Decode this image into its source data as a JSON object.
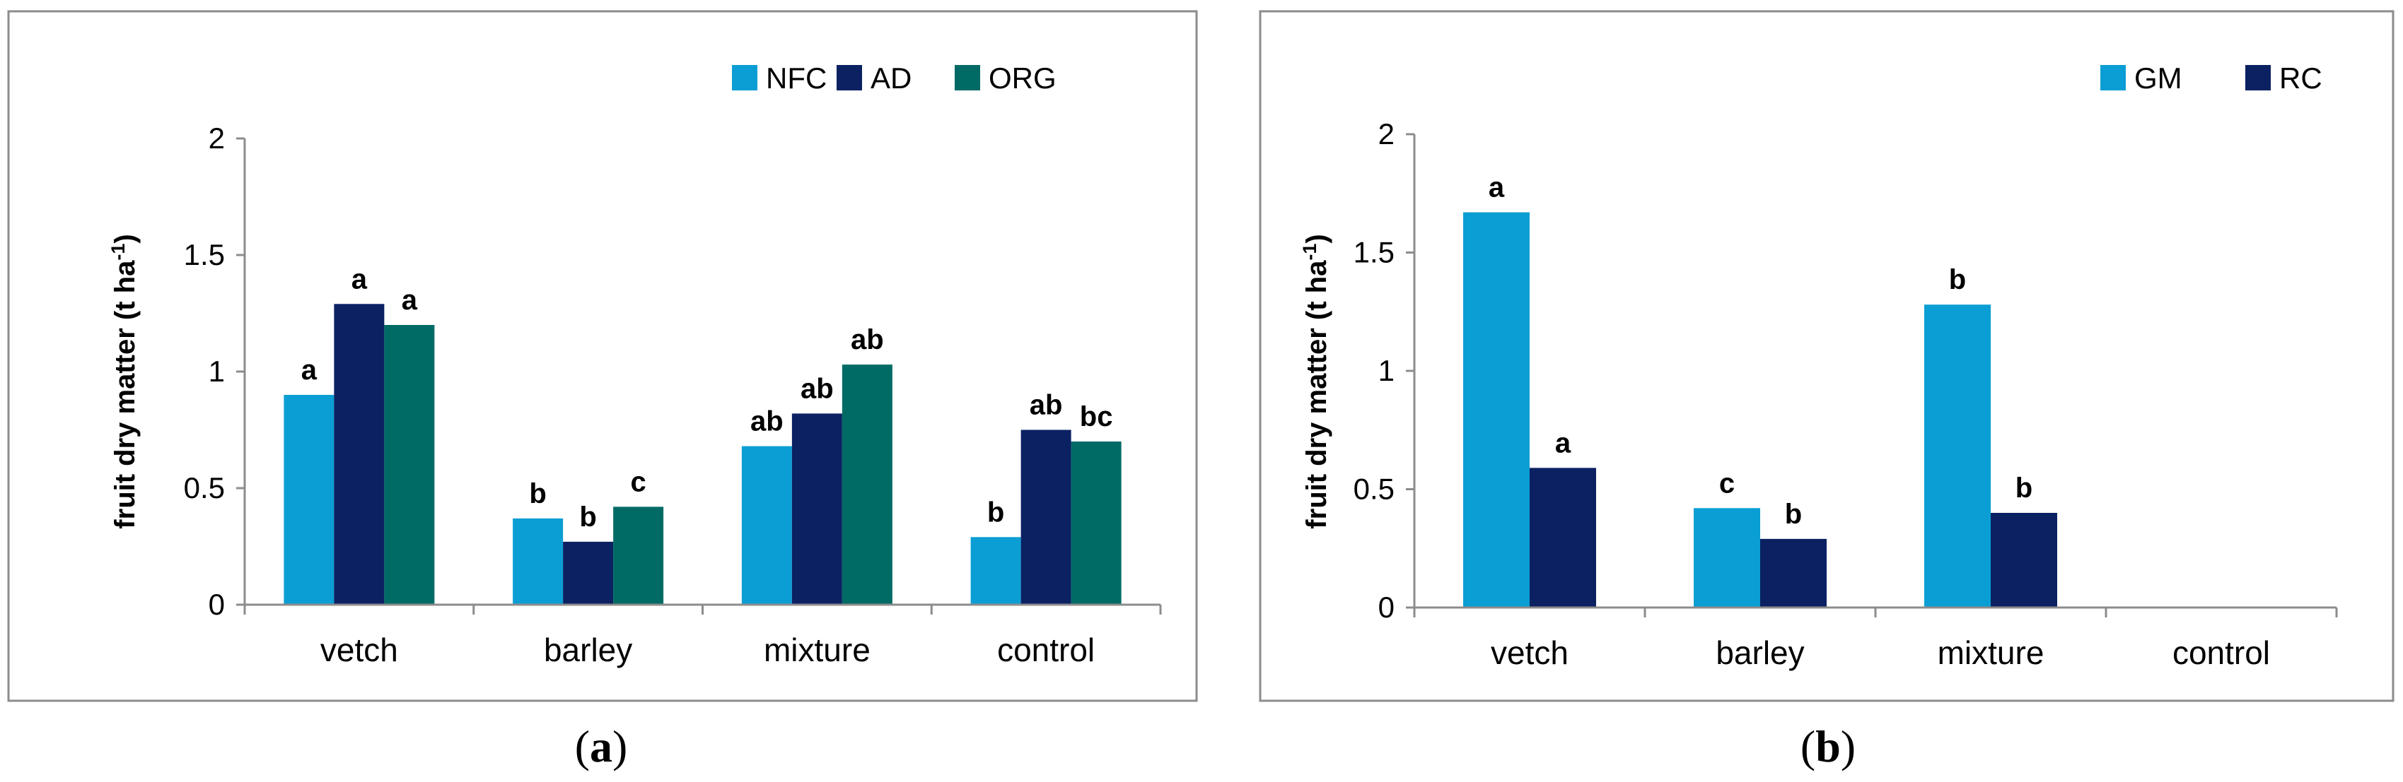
{
  "colors": {
    "NFC": "#0b9ed4",
    "AD": "#0b2162",
    "ORG": "#006b65",
    "GM": "#0b9ed4",
    "RC": "#0b2162"
  },
  "chart_data": [
    {
      "type": "bar",
      "id": "a",
      "caption": "a",
      "ylabel": "fruit dry matter (t ha",
      "ylabel_sup": "-1",
      "ylabel_close": ")",
      "ylim": [
        0,
        2
      ],
      "yticks": [
        "0",
        "0.5",
        "1",
        "1.5",
        "2"
      ],
      "categories": [
        "vetch",
        "barley",
        "mixture",
        "control"
      ],
      "series": [
        {
          "name": "NFC",
          "values": [
            0.9,
            0.37,
            0.68,
            0.29
          ],
          "labels": [
            "a",
            "b",
            "ab",
            "b"
          ]
        },
        {
          "name": "AD",
          "values": [
            1.29,
            0.27,
            0.82,
            0.75
          ],
          "labels": [
            "a",
            "b",
            "ab",
            "ab"
          ]
        },
        {
          "name": "ORG",
          "values": [
            1.2,
            0.42,
            1.03,
            0.7
          ],
          "labels": [
            "a",
            "c",
            "ab",
            "bc"
          ]
        }
      ],
      "legend": "top-right"
    },
    {
      "type": "bar",
      "id": "b",
      "caption": "b",
      "ylabel": "fruit dry matter (t ha",
      "ylabel_sup": "-1",
      "ylabel_close": ")",
      "ylim": [
        0,
        2
      ],
      "yticks": [
        "0",
        "0.5",
        "1",
        "1.5",
        "2"
      ],
      "categories": [
        "vetch",
        "barley",
        "mixture",
        "control"
      ],
      "series": [
        {
          "name": "GM",
          "values": [
            1.67,
            0.42,
            1.28,
            null
          ],
          "labels": [
            "a",
            "c",
            "b",
            ""
          ]
        },
        {
          "name": "RC",
          "values": [
            0.59,
            0.29,
            0.4,
            null
          ],
          "labels": [
            "a",
            "b",
            "b",
            ""
          ]
        }
      ],
      "legend": "top-right"
    }
  ]
}
